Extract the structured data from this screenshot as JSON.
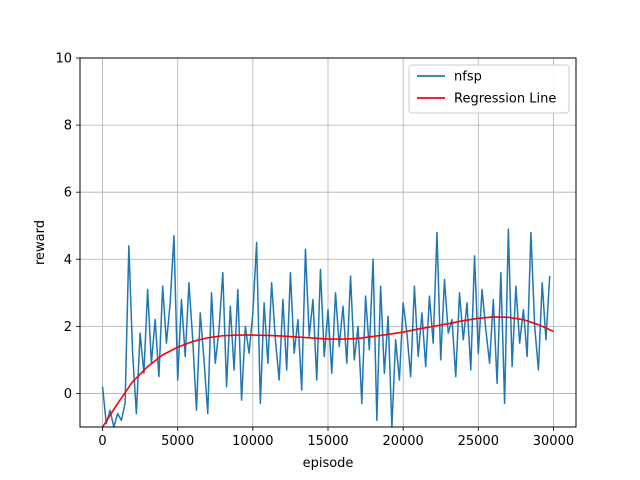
{
  "chart_data": {
    "type": "line",
    "title": "",
    "xlabel": "episode",
    "ylabel": "reward",
    "xlim": [
      -1500,
      31500
    ],
    "ylim": [
      -1,
      10
    ],
    "xticks": [
      0,
      5000,
      10000,
      15000,
      20000,
      25000,
      30000
    ],
    "xtick_labels": [
      "0",
      "5000",
      "10000",
      "15000",
      "20000",
      "25000",
      "30000"
    ],
    "yticks": [
      0,
      2,
      4,
      6,
      8,
      10
    ],
    "ytick_labels": [
      "0",
      "2",
      "4",
      "6",
      "8",
      "10"
    ],
    "grid": true,
    "legend_position": "upper right",
    "series": [
      {
        "name": "nfsp",
        "color": "#1f77b4",
        "x": [
          0,
          250,
          500,
          750,
          1000,
          1250,
          1500,
          1750,
          2000,
          2250,
          2500,
          2750,
          3000,
          3250,
          3500,
          3750,
          4000,
          4250,
          4500,
          4750,
          5000,
          5250,
          5500,
          5750,
          6000,
          6250,
          6500,
          6750,
          7000,
          7250,
          7500,
          7750,
          8000,
          8250,
          8500,
          8750,
          9000,
          9250,
          9500,
          9750,
          10000,
          10250,
          10500,
          10750,
          11000,
          11250,
          11500,
          11750,
          12000,
          12250,
          12500,
          12750,
          13000,
          13250,
          13500,
          13750,
          14000,
          14250,
          14500,
          14750,
          15000,
          15250,
          15500,
          15750,
          16000,
          16250,
          16500,
          16750,
          17000,
          17250,
          17500,
          17750,
          18000,
          18250,
          18500,
          18750,
          19000,
          19250,
          19500,
          19750,
          20000,
          20250,
          20500,
          20750,
          21000,
          21250,
          21500,
          21750,
          22000,
          22250,
          22500,
          22750,
          23000,
          23250,
          23500,
          23750,
          24000,
          24250,
          24500,
          24750,
          25000,
          25250,
          25500,
          25750,
          26000,
          26250,
          26500,
          26750,
          27000,
          27250,
          27500,
          27750,
          28000,
          28250,
          28500,
          28750,
          29000,
          29250,
          29500,
          29750
        ],
        "y": [
          0.2,
          -0.9,
          -0.5,
          -1.0,
          -0.6,
          -0.8,
          -0.3,
          4.4,
          1.2,
          -0.6,
          1.8,
          0.6,
          3.1,
          0.9,
          2.2,
          0.5,
          3.2,
          1.5,
          2.7,
          4.7,
          0.4,
          2.8,
          1.1,
          3.3,
          1.6,
          -0.5,
          2.4,
          1.0,
          -0.6,
          3.0,
          0.9,
          1.9,
          3.6,
          0.2,
          2.6,
          0.7,
          3.1,
          -0.2,
          2.0,
          1.2,
          2.4,
          4.5,
          -0.3,
          2.7,
          0.9,
          3.3,
          1.6,
          0.4,
          2.8,
          0.7,
          3.6,
          1.2,
          2.2,
          0.1,
          4.3,
          1.7,
          2.8,
          0.4,
          3.7,
          1.1,
          2.5,
          0.6,
          3.0,
          1.4,
          2.6,
          0.9,
          3.5,
          1.0,
          2.0,
          -0.3,
          2.9,
          1.3,
          4.0,
          -0.8,
          3.2,
          0.6,
          2.3,
          -1.0,
          1.6,
          0.4,
          2.7,
          1.8,
          0.5,
          3.2,
          1.1,
          2.4,
          0.8,
          2.9,
          1.5,
          4.8,
          1.0,
          3.4,
          1.8,
          2.2,
          0.5,
          3.0,
          1.6,
          2.7,
          0.7,
          4.1,
          1.2,
          3.1,
          1.9,
          0.9,
          2.8,
          0.3,
          3.6,
          -0.3,
          4.9,
          0.8,
          3.2,
          1.5,
          2.5,
          1.1,
          4.8,
          2.0,
          0.7,
          3.3,
          1.6,
          3.5
        ]
      },
      {
        "name": "Regression Line",
        "color": "#ff0000",
        "x": [
          0,
          1000,
          2000,
          3000,
          4000,
          5000,
          6000,
          7000,
          8000,
          9000,
          10000,
          11000,
          12000,
          13000,
          14000,
          15000,
          16000,
          17000,
          18000,
          19000,
          20000,
          21000,
          22000,
          23000,
          24000,
          25000,
          26000,
          27000,
          28000,
          29000,
          30000
        ],
        "y": [
          -1.0,
          -0.3,
          0.35,
          0.8,
          1.15,
          1.38,
          1.55,
          1.66,
          1.72,
          1.74,
          1.74,
          1.73,
          1.71,
          1.68,
          1.65,
          1.62,
          1.62,
          1.64,
          1.7,
          1.76,
          1.83,
          1.92,
          2.0,
          2.08,
          2.17,
          2.24,
          2.28,
          2.27,
          2.2,
          2.05,
          1.85
        ]
      }
    ]
  }
}
